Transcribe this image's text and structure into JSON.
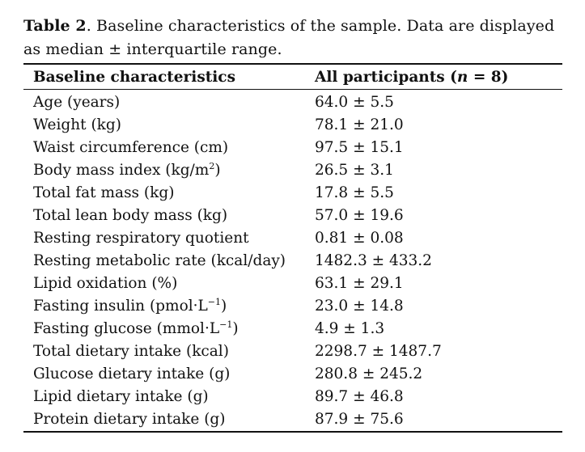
{
  "caption": {
    "label": "Table 2",
    "text": ". Baseline characteristics of the sample. Data are displayed as median ± interquartile range."
  },
  "table": {
    "headers": {
      "characteristic": "Baseline characteristics",
      "value_prefix": "All participants (",
      "value_n": "n",
      "value_suffix": " = 8)"
    },
    "rows": [
      {
        "label": "Age (years)",
        "label_sup": "",
        "label_after": "",
        "value": "64.0 ± 5.5"
      },
      {
        "label": "Weight (kg)",
        "label_sup": "",
        "label_after": "",
        "value": "78.1 ± 21.0"
      },
      {
        "label": "Waist circumference (cm)",
        "label_sup": "",
        "label_after": "",
        "value": "97.5 ± 15.1"
      },
      {
        "label": "Body mass index (kg/m",
        "label_sup": "2",
        "label_after": ")",
        "value": "26.5 ± 3.1"
      },
      {
        "label": "Total fat mass (kg)",
        "label_sup": "",
        "label_after": "",
        "value": "17.8 ± 5.5"
      },
      {
        "label": "Total lean body mass (kg)",
        "label_sup": "",
        "label_after": "",
        "value": "57.0 ± 19.6"
      },
      {
        "label": "Resting respiratory quotient",
        "label_sup": "",
        "label_after": "",
        "value": "0.81 ± 0.08"
      },
      {
        "label": "Resting metabolic rate (kcal/day)",
        "label_sup": "",
        "label_after": "",
        "value": "1482.3 ± 433.2"
      },
      {
        "label": "Lipid oxidation (%)",
        "label_sup": "",
        "label_after": "",
        "value": "63.1 ± 29.1"
      },
      {
        "label": "Fasting insulin (pmol·L",
        "label_sup": "−1",
        "label_after": ")",
        "value": "23.0 ± 14.8"
      },
      {
        "label": "Fasting glucose (mmol·L",
        "label_sup": "−1",
        "label_after": ")",
        "value": "4.9 ± 1.3"
      },
      {
        "label": "Total dietary intake (kcal)",
        "label_sup": "",
        "label_after": "",
        "value": "2298.7 ± 1487.7"
      },
      {
        "label": "Glucose dietary intake (g)",
        "label_sup": "",
        "label_after": "",
        "value": "280.8 ± 245.2"
      },
      {
        "label": "Lipid dietary intake (g)",
        "label_sup": "",
        "label_after": "",
        "value": "89.7 ± 46.8"
      },
      {
        "label": "Protein dietary intake (g)",
        "label_sup": "",
        "label_after": "",
        "value": "87.9 ± 75.6"
      }
    ]
  }
}
